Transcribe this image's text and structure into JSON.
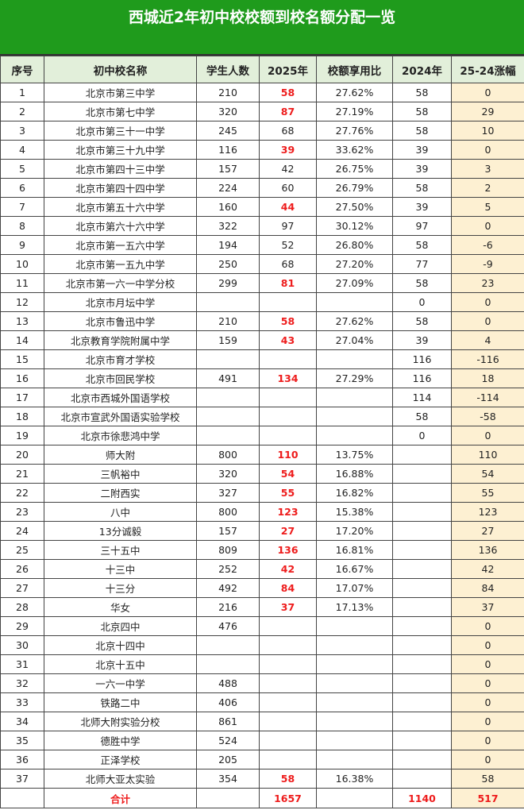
{
  "title": "西城近2年初中校校额到校名额分配一览",
  "headers": [
    "序号",
    "初中校名称",
    "学生人数",
    "2025年",
    "校额享用比",
    "2024年",
    "25-24涨幅"
  ],
  "colors": {
    "title_bg": "#1f9b1c",
    "header_bg": "#e2efda",
    "diff_bg": "#fdf0d2",
    "highlight": "#ee1c1c"
  },
  "rows": [
    [
      "1",
      "北京市第三中学",
      "210",
      "58",
      "27.62%",
      "58",
      "0",
      true
    ],
    [
      "2",
      "北京市第七中学",
      "320",
      "87",
      "27.19%",
      "58",
      "29",
      true
    ],
    [
      "3",
      "北京市第三十一中学",
      "245",
      "68",
      "27.76%",
      "58",
      "10",
      false
    ],
    [
      "4",
      "北京市第三十九中学",
      "116",
      "39",
      "33.62%",
      "39",
      "0",
      true
    ],
    [
      "5",
      "北京市第四十三中学",
      "157",
      "42",
      "26.75%",
      "39",
      "3",
      false
    ],
    [
      "6",
      "北京市第四十四中学",
      "224",
      "60",
      "26.79%",
      "58",
      "2",
      false
    ],
    [
      "7",
      "北京市第五十六中学",
      "160",
      "44",
      "27.50%",
      "39",
      "5",
      true
    ],
    [
      "8",
      "北京市第六十六中学",
      "322",
      "97",
      "30.12%",
      "97",
      "0",
      false
    ],
    [
      "9",
      "北京市第一五六中学",
      "194",
      "52",
      "26.80%",
      "58",
      "-6",
      false
    ],
    [
      "10",
      "北京市第一五九中学",
      "250",
      "68",
      "27.20%",
      "77",
      "-9",
      false
    ],
    [
      "11",
      "北京市第一六一中学分校",
      "299",
      "81",
      "27.09%",
      "58",
      "23",
      true
    ],
    [
      "12",
      "北京市月坛中学",
      "",
      "",
      "",
      "0",
      "0",
      false
    ],
    [
      "13",
      "北京市鲁迅中学",
      "210",
      "58",
      "27.62%",
      "58",
      "0",
      true
    ],
    [
      "14",
      "北京教育学院附属中学",
      "159",
      "43",
      "27.04%",
      "39",
      "4",
      true
    ],
    [
      "15",
      "北京市育才学校",
      "",
      "",
      "",
      "116",
      "-116",
      false
    ],
    [
      "16",
      "北京市回民学校",
      "491",
      "134",
      "27.29%",
      "116",
      "18",
      true
    ],
    [
      "17",
      "北京市西城外国语学校",
      "",
      "",
      "",
      "114",
      "-114",
      false
    ],
    [
      "18",
      "北京市宣武外国语实验学校",
      "",
      "",
      "",
      "58",
      "-58",
      false
    ],
    [
      "19",
      "北京市徐悲鸿中学",
      "",
      "",
      "",
      "0",
      "0",
      false
    ],
    [
      "20",
      "师大附",
      "800",
      "110",
      "13.75%",
      "",
      "110",
      true
    ],
    [
      "21",
      "三帆裕中",
      "320",
      "54",
      "16.88%",
      "",
      "54",
      true
    ],
    [
      "22",
      "二附西实",
      "327",
      "55",
      "16.82%",
      "",
      "55",
      true
    ],
    [
      "23",
      "八中",
      "800",
      "123",
      "15.38%",
      "",
      "123",
      true
    ],
    [
      "24",
      "13分诚毅",
      "157",
      "27",
      "17.20%",
      "",
      "27",
      true
    ],
    [
      "25",
      "三十五中",
      "809",
      "136",
      "16.81%",
      "",
      "136",
      true
    ],
    [
      "26",
      "十三中",
      "252",
      "42",
      "16.67%",
      "",
      "42",
      true
    ],
    [
      "27",
      "十三分",
      "492",
      "84",
      "17.07%",
      "",
      "84",
      true
    ],
    [
      "28",
      "华女",
      "216",
      "37",
      "17.13%",
      "",
      "37",
      true
    ],
    [
      "29",
      "北京四中",
      "476",
      "",
      "",
      "",
      "0",
      false
    ],
    [
      "30",
      "北京十四中",
      "",
      "",
      "",
      "",
      "0",
      false
    ],
    [
      "31",
      "北京十五中",
      "",
      "",
      "",
      "",
      "0",
      false
    ],
    [
      "32",
      "一六一中学",
      "488",
      "",
      "",
      "",
      "0",
      false
    ],
    [
      "33",
      "铁路二中",
      "406",
      "",
      "",
      "",
      "0",
      false
    ],
    [
      "34",
      "北师大附实验分校",
      "861",
      "",
      "",
      "",
      "0",
      false
    ],
    [
      "35",
      "德胜中学",
      "524",
      "",
      "",
      "",
      "0",
      false
    ],
    [
      "36",
      "正泽学校",
      "205",
      "",
      "",
      "",
      "0",
      false
    ],
    [
      "37",
      "北师大亚太实验",
      "354",
      "58",
      "16.38%",
      "",
      "58",
      true
    ]
  ],
  "total": {
    "label": "合计",
    "y2025": "1657",
    "y2024": "1140",
    "diff": "517"
  }
}
